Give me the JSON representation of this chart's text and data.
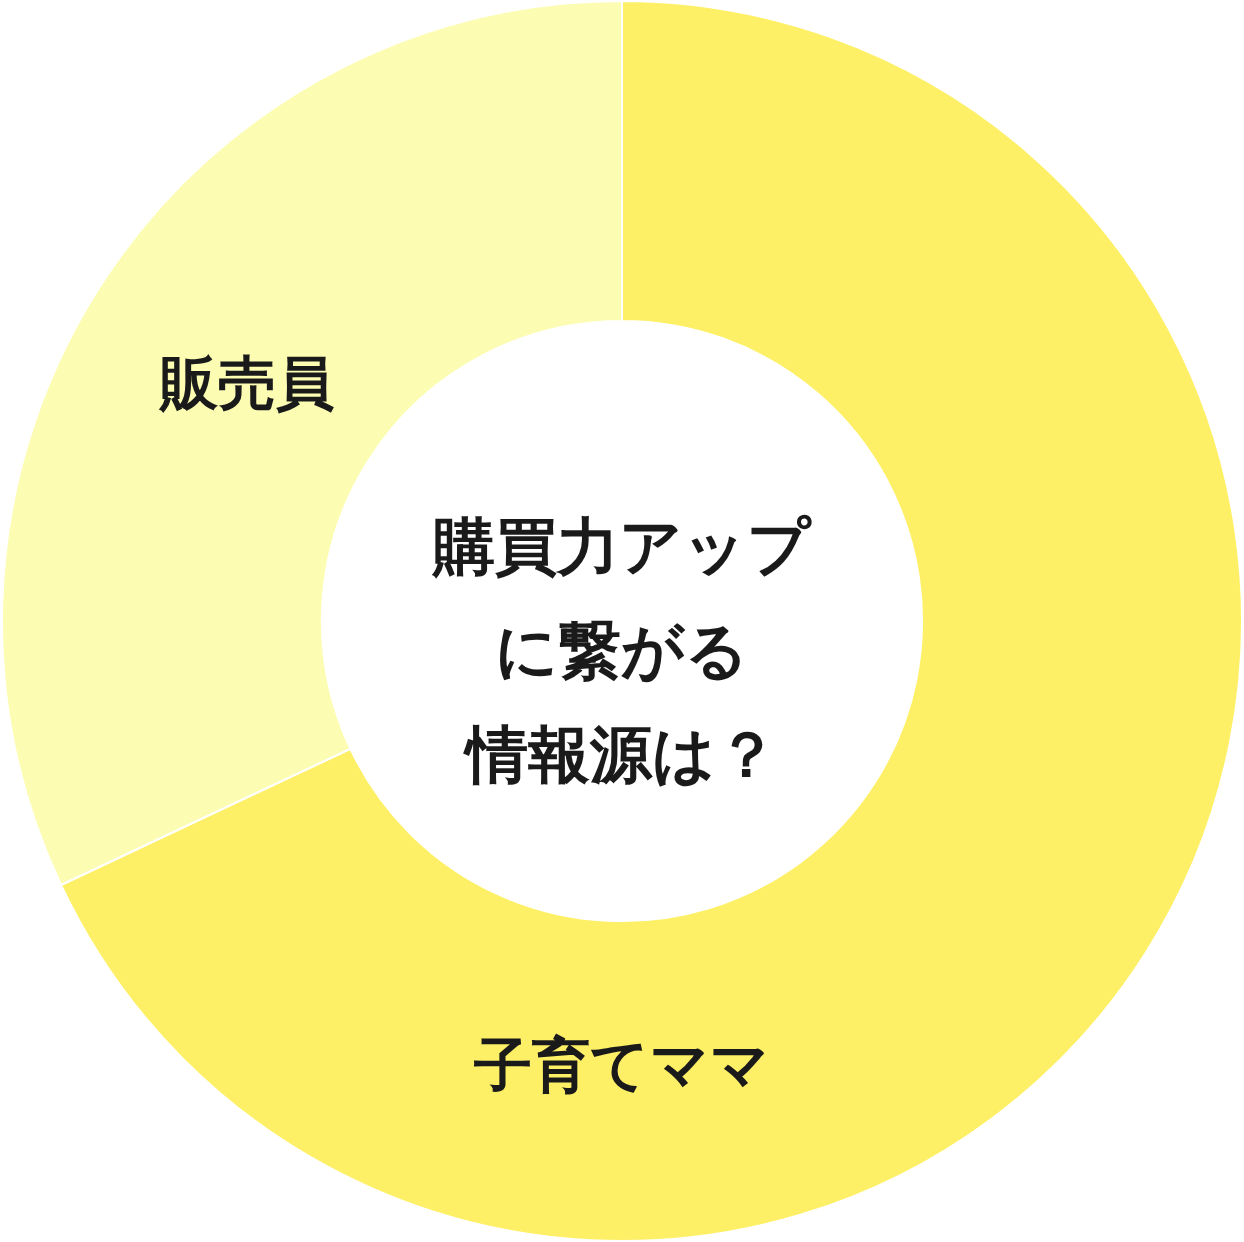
{
  "chart_data": {
    "type": "donut",
    "title": "購買力アップに繋がる情報源は？",
    "categories": [
      "子育てママ",
      "販売員"
    ],
    "values": [
      68,
      32
    ],
    "colors": [
      "#fef066",
      "#fcfdb3"
    ]
  }
}
